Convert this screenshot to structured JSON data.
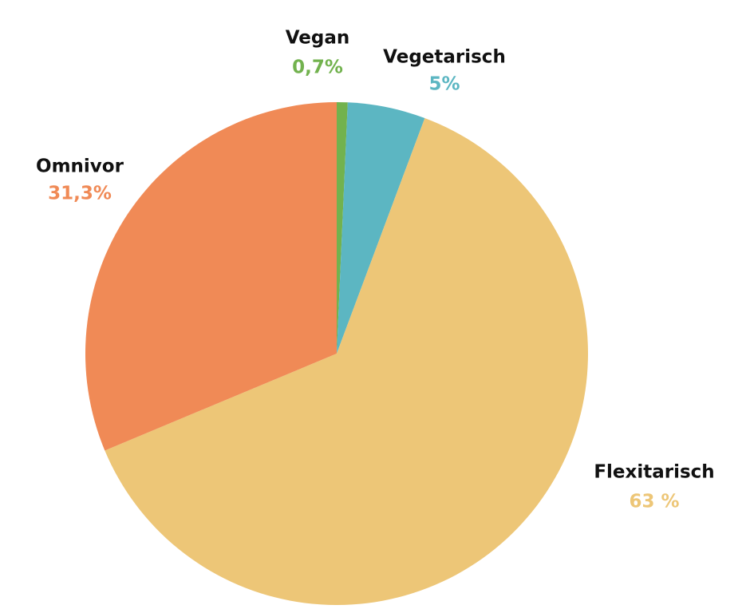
{
  "chart_data": {
    "type": "pie",
    "categories": [
      "Vegan",
      "Vegetarisch",
      "Flexitarisch",
      "Omnivor"
    ],
    "values": [
      0.7,
      5,
      63,
      31.3
    ],
    "value_labels": [
      "0,7%",
      "5%",
      "63 %",
      "31,3%"
    ],
    "colors": [
      "#72b24e",
      "#5cb6c2",
      "#edc677",
      "#f08a56"
    ]
  }
}
